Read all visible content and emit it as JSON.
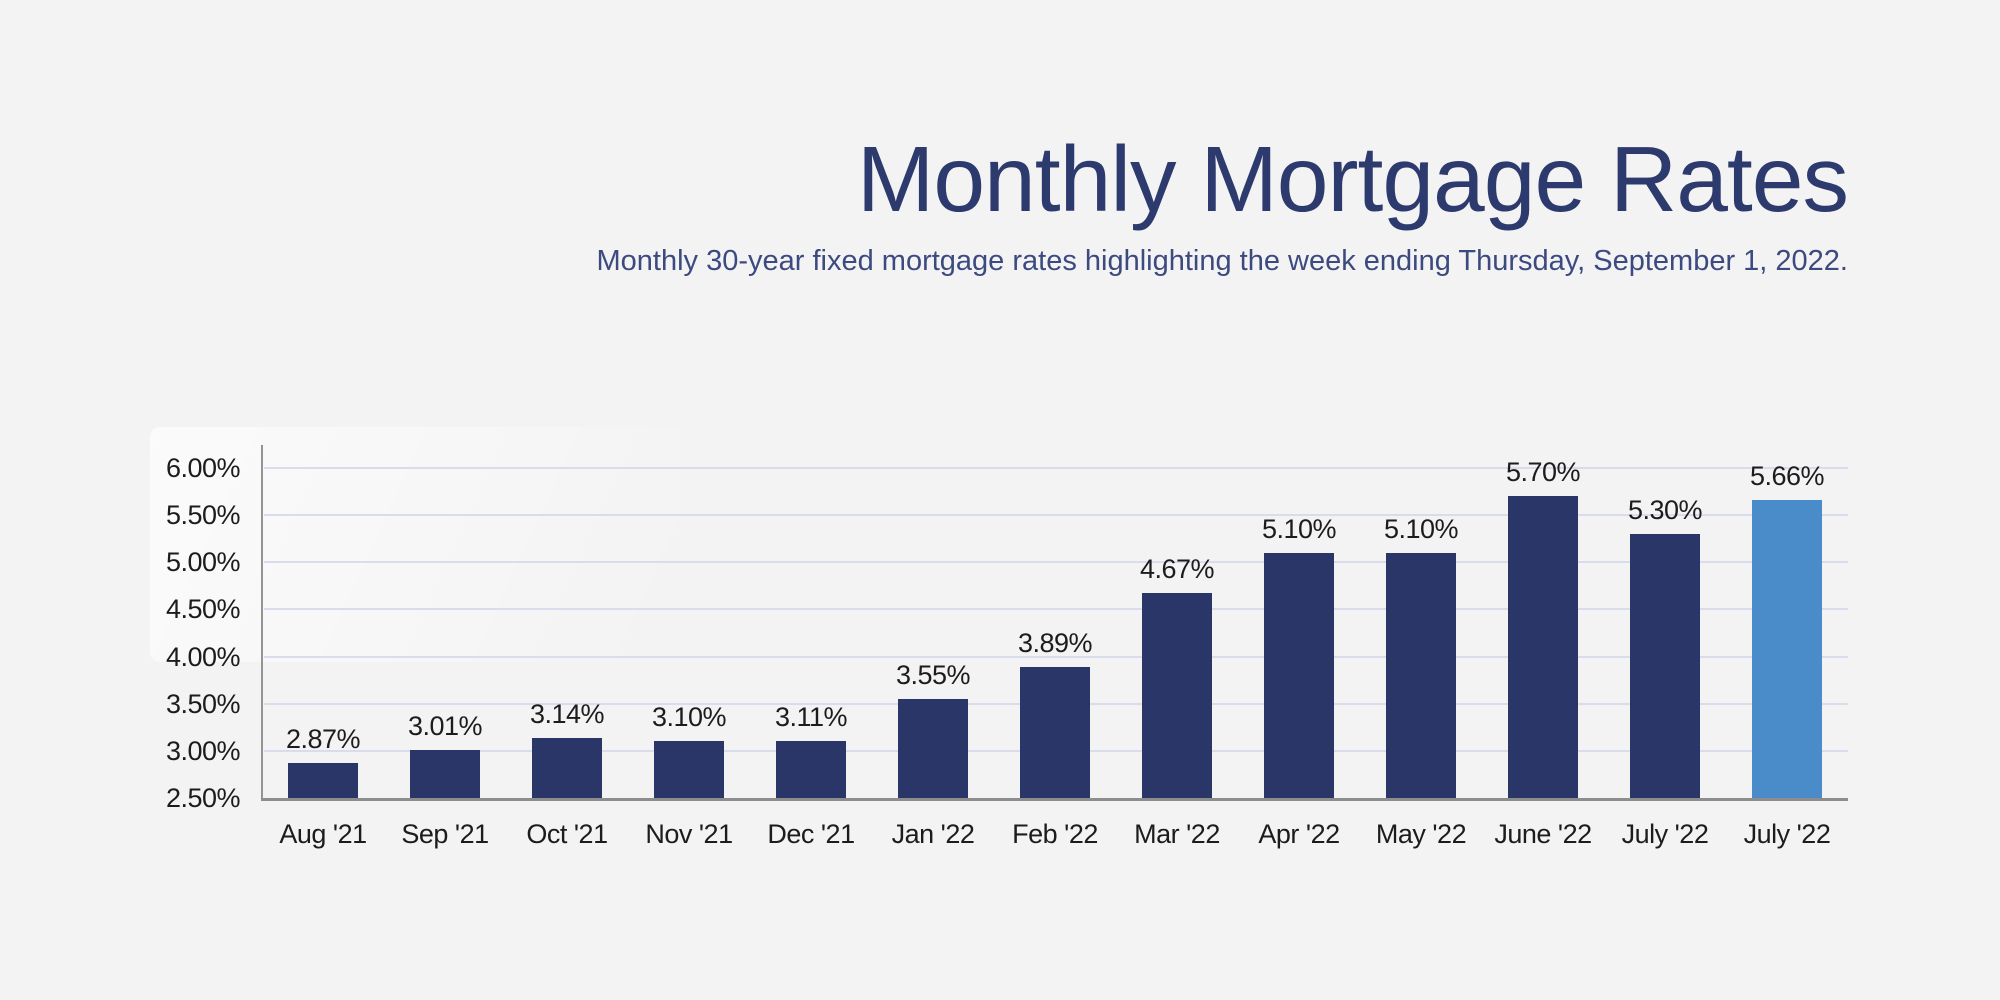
{
  "page": {
    "background": "#f3f3f4"
  },
  "header": {
    "title": "Monthly Mortgage Rates",
    "subtitle": "Monthly 30-year fixed mortgage rates highlighting the week ending Thursday, September 1, 2022.",
    "title_color": "#2d3a6d",
    "subtitle_color": "#3c4a80"
  },
  "chart_data": {
    "type": "bar",
    "title": "Monthly Mortgage Rates",
    "subtitle": "Monthly 30-year fixed mortgage rates highlighting the week ending Thursday, September 1, 2022.",
    "categories": [
      "Aug '21",
      "Sep '21",
      "Oct '21",
      "Nov '21",
      "Dec '21",
      "Jan '22",
      "Feb '22",
      "Mar '22",
      "Apr '22",
      "May '22",
      "June '22",
      "July '22",
      "July '22"
    ],
    "values": [
      2.87,
      3.01,
      3.14,
      3.1,
      3.11,
      3.55,
      3.89,
      4.67,
      5.1,
      5.1,
      5.7,
      5.3,
      5.66
    ],
    "value_labels": [
      "2.87%",
      "3.01%",
      "3.14%",
      "3.10%",
      "3.11%",
      "3.55%",
      "3.89%",
      "4.67%",
      "5.10%",
      "5.10%",
      "5.70%",
      "5.30%",
      "5.66%"
    ],
    "highlight_index": 12,
    "y_tick_labels": [
      "6.00%",
      "5.50%",
      "5.00%",
      "4.50%",
      "4.00%",
      "3.50%",
      "3.00%",
      "2.50%"
    ],
    "y_min": 2.5,
    "y_max": 6.25,
    "y_step": 0.5,
    "grid": true,
    "legend": "none",
    "bar_color": "#2a3568",
    "highlight_color": "#4a8bc9",
    "gridline_color": "#d9ddeb",
    "axis_line_color": "#949494",
    "baseline_color": "#8d8d8d",
    "tick_label_color": "#1c1c1c",
    "value_label_color": "#1c1c1c"
  }
}
